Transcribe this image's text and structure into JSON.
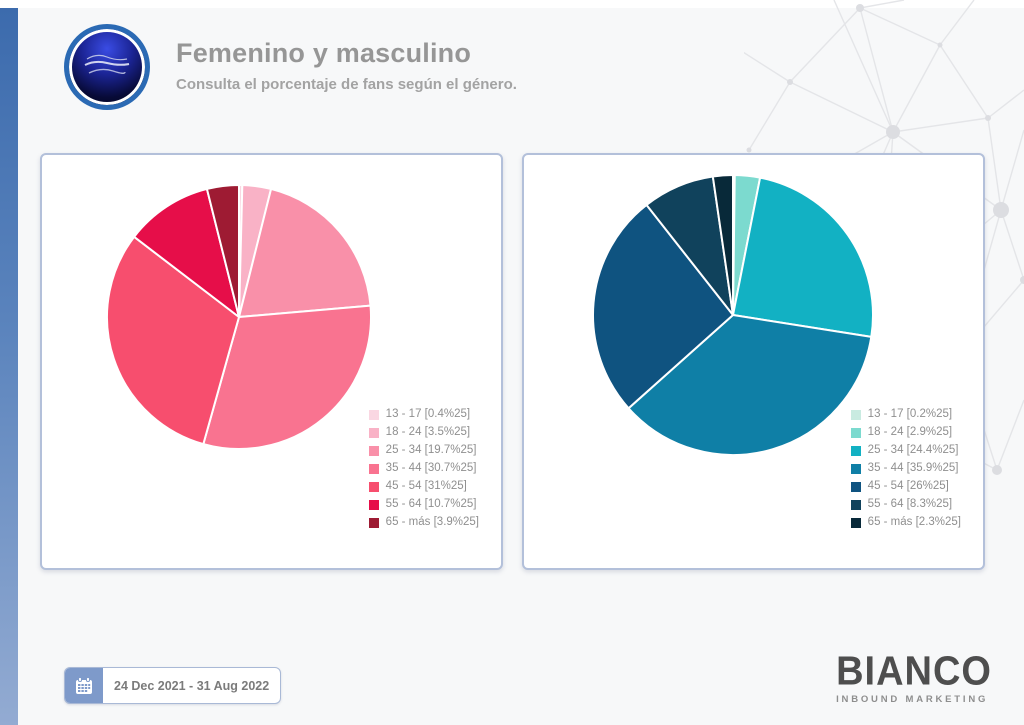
{
  "header": {
    "title": "Femenino y masculino",
    "subtitle": "Consulta el porcentaje de fans según el género."
  },
  "footer": {
    "date_range": "24 Dec 2021 - 31 Aug 2022",
    "brand_name": "BIANCO",
    "brand_tagline": "INBOUND MARKETING"
  },
  "chart_data": [
    {
      "type": "pie",
      "name": "femenino",
      "title": "",
      "categories": [
        "13 - 17",
        "18 - 24",
        "25 - 34",
        "35 - 44",
        "45 - 54",
        "55 - 64",
        "65 - más"
      ],
      "values": [
        0.4,
        3.5,
        19.7,
        30.7,
        31,
        10.7,
        3.9
      ],
      "unit": "%",
      "colors": [
        "#fad7e2",
        "#f9b2c6",
        "#f990a9",
        "#f97390",
        "#f74e6e",
        "#e60e49",
        "#9e1b33"
      ],
      "legend_labels": [
        "13 - 17 [0.4%25]",
        "18 - 24 [3.5%25]",
        "25 - 34 [19.7%25]",
        "35 - 44 [30.7%25]",
        "45 - 54 [31%25]",
        "55 - 64 [10.7%25]",
        "65 - más [3.9%25]"
      ],
      "legend_position": "right-bottom",
      "start_angle_deg": 0,
      "direction": "clockwise",
      "slice_border_color": "#ffffff"
    },
    {
      "type": "pie",
      "name": "masculino",
      "title": "",
      "categories": [
        "13 - 17",
        "18 - 24",
        "25 - 34",
        "35 - 44",
        "45 - 54",
        "55 - 64",
        "65 - más"
      ],
      "values": [
        0.2,
        2.9,
        24.4,
        35.9,
        26,
        8.3,
        2.3
      ],
      "unit": "%",
      "colors": [
        "#c9ebe1",
        "#7cdacf",
        "#12b1c3",
        "#0f7fa6",
        "#0f5380",
        "#10425c",
        "#082939"
      ],
      "legend_labels": [
        "13 - 17 [0.2%25]",
        "18 - 24 [2.9%25]",
        "25 - 34 [24.4%25]",
        "35 - 44 [35.9%25]",
        "45 - 54 [26%25]",
        "55 - 64 [8.3%25]",
        "65 - más [2.3%25]"
      ],
      "legend_position": "right-bottom",
      "start_angle_deg": 0,
      "direction": "clockwise",
      "slice_border_color": "#ffffff"
    }
  ]
}
